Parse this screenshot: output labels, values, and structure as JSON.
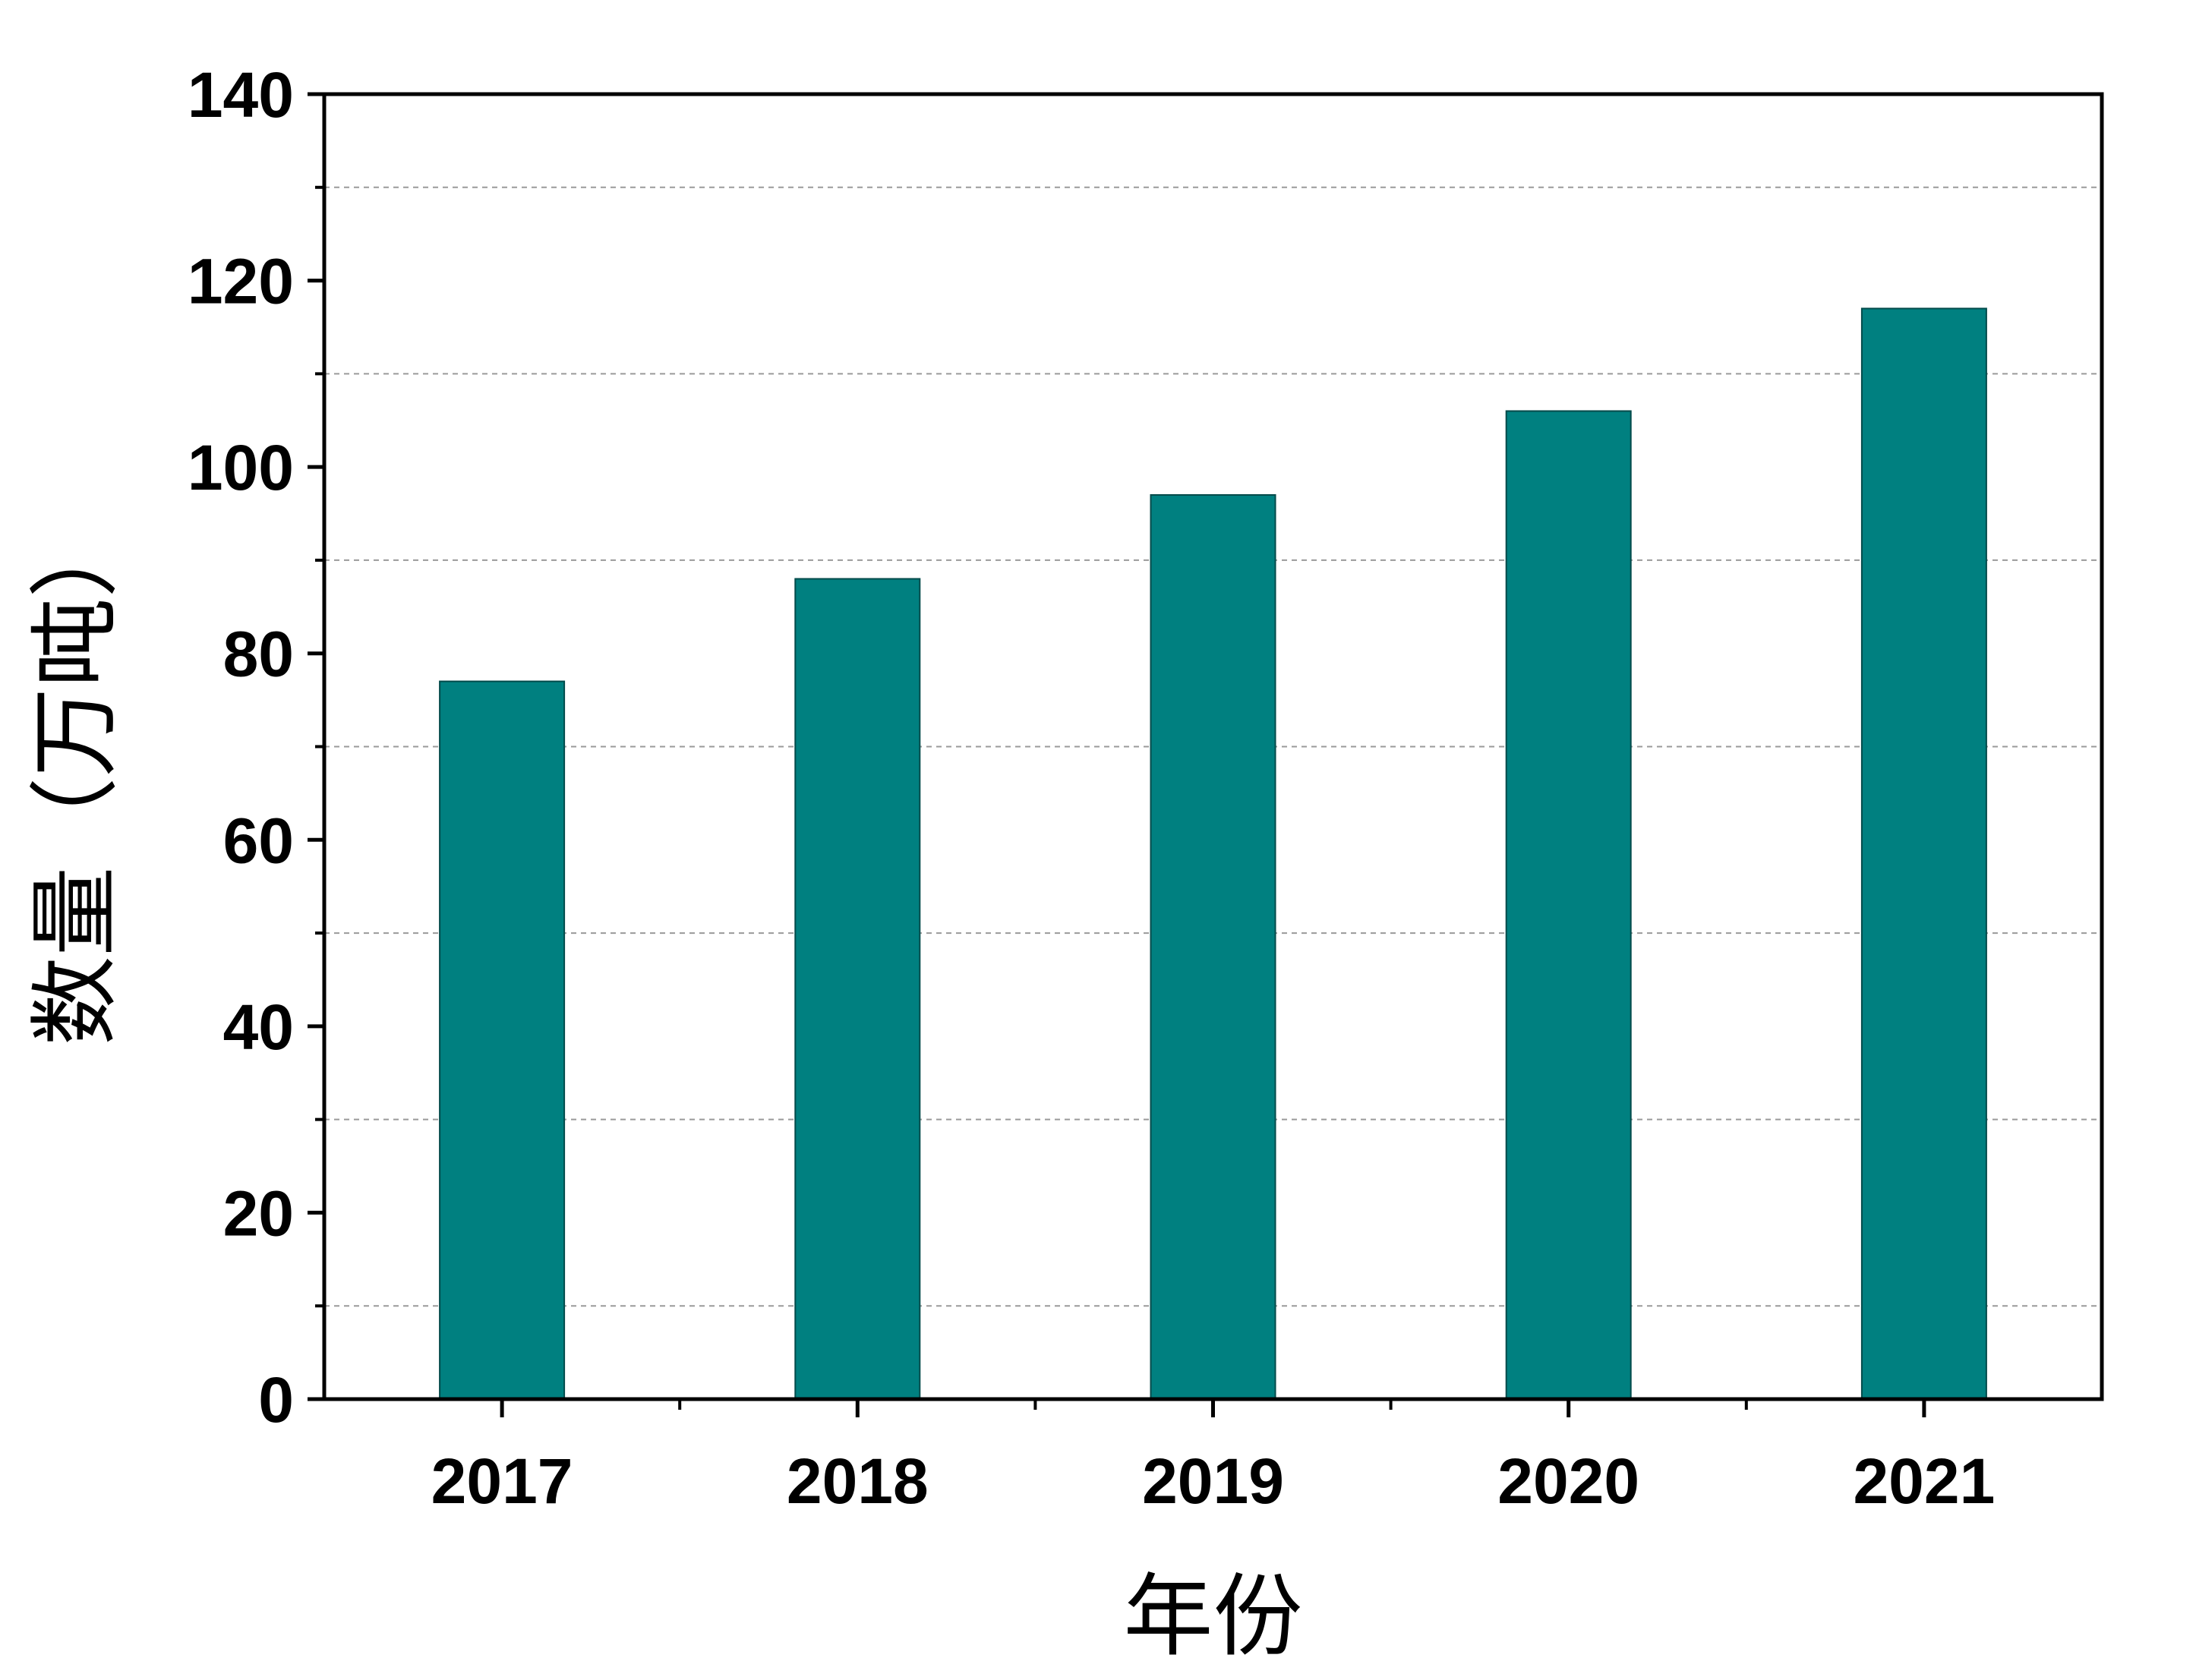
{
  "chart_data": {
    "type": "bar",
    "categories": [
      "2017",
      "2018",
      "2019",
      "2020",
      "2021"
    ],
    "values": [
      77,
      88,
      97,
      106,
      117
    ],
    "xlabel": "年份",
    "ylabel": "数量（万吨）",
    "ylim": [
      0,
      140
    ],
    "y_ticks": [
      "0",
      "20",
      "40",
      "60",
      "80",
      "100",
      "120",
      "140"
    ],
    "grid": "horizontal dashed at minor ticks",
    "bar_color": "#008080"
  }
}
